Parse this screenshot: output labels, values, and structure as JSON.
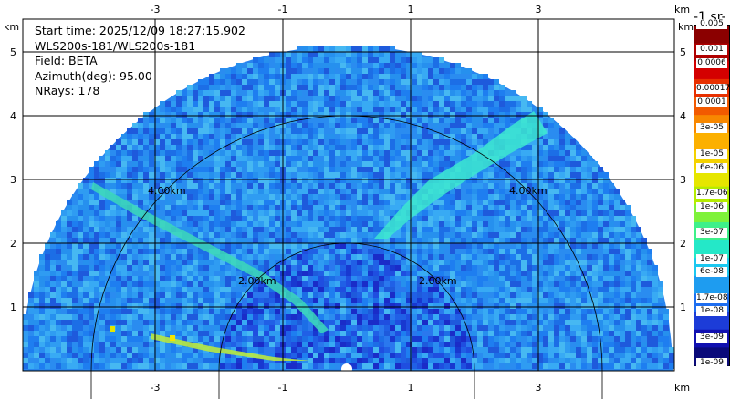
{
  "info": {
    "start_time": "Start time: 2025/12/09 18:27:15.902",
    "instrument": "WLS200s-181/WLS200s-181",
    "field": "Field: BETA",
    "azimuth": "Azimuth(deg): 95.00",
    "nrays": "NRays: 178"
  },
  "axes": {
    "unit": "km",
    "ring_labels": [
      "2.00km",
      "4.00km"
    ]
  },
  "colorbar": {
    "title": "-1 sr-",
    "tick_labels": [
      "0.005",
      "0.001",
      "0.0006",
      "0.00017",
      "0.0001",
      "3e-05",
      "1e-05",
      "6e-06",
      "1.7e-06",
      "1e-06",
      "3e-07",
      "1e-07",
      "6e-08",
      "1.7e-08",
      "1e-08",
      "3e-09",
      "1e-09"
    ],
    "colors": [
      "#8b0000",
      "#b00000",
      "#d40000",
      "#e83000",
      "#f25a00",
      "#f88800",
      "#fcb000",
      "#f4d200",
      "#e6e600",
      "#b4ec00",
      "#7ef23a",
      "#3ef08a",
      "#24e8c8",
      "#1cc8f0",
      "#1e9cf0",
      "#1e6ef0",
      "#1c3cd8",
      "#1010b0",
      "#0a0a7a"
    ]
  },
  "chart_data": {
    "type": "heatmap",
    "title": "",
    "field": "BETA",
    "azimuth_deg": 95.0,
    "nrays": 178,
    "xlabel": "km",
    "ylabel": "km",
    "xlim": [
      -5.0,
      5.0
    ],
    "ylim": [
      0.0,
      5.65
    ],
    "xticks": [
      -3,
      -1,
      1,
      3
    ],
    "yticks": [
      1,
      2,
      3,
      4,
      5
    ],
    "range_rings_km": [
      2.0,
      4.0
    ],
    "max_range_km": 5.1,
    "color_scale": "log",
    "colorbar_ticks": [
      "0.005",
      "0.001",
      "0.0006",
      "0.00017",
      "0.0001",
      "3e-05",
      "1e-05",
      "6e-06",
      "1.7e-06",
      "1e-06",
      "3e-07",
      "1e-07",
      "6e-08",
      "1.7e-08",
      "1e-08",
      "3e-09",
      "1e-09"
    ]
  }
}
